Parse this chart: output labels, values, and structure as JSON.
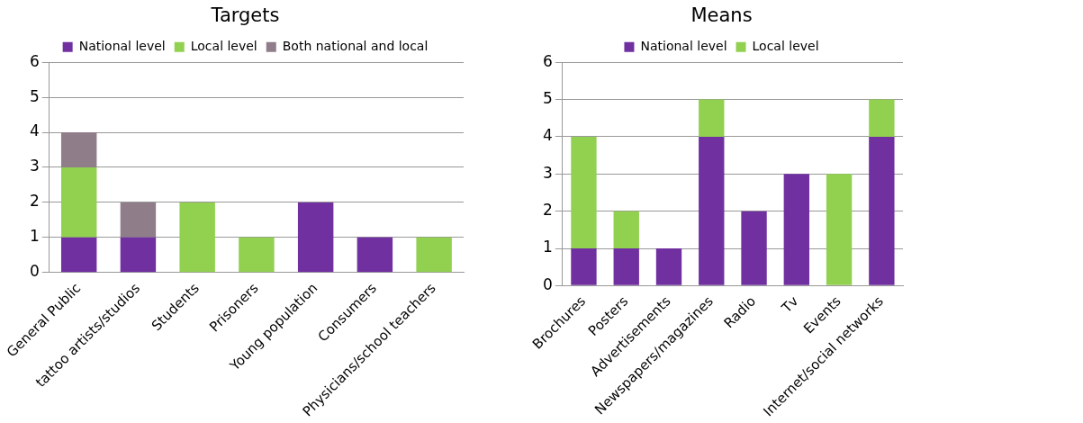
{
  "chart_data": [
    {
      "type": "bar",
      "title": "Targets",
      "stacked": true,
      "legend": "top",
      "grid": "y",
      "categories": [
        "General Public",
        "tattoo artists/studios",
        "Students",
        "Prisoners",
        "Young population",
        "Consumers",
        "Physicians/school teachers"
      ],
      "series": [
        {
          "name": "National level",
          "color": "#7030a0",
          "values": [
            1,
            1,
            0,
            0,
            2,
            1,
            0
          ]
        },
        {
          "name": "Local level",
          "color": "#92d050",
          "values": [
            2,
            0,
            2,
            1,
            0,
            0,
            1
          ]
        },
        {
          "name": "Both national and local",
          "color": "#8f7d8a",
          "values": [
            1,
            1,
            0,
            0,
            0,
            0,
            0
          ]
        }
      ],
      "ylim": [
        0,
        6
      ],
      "yticks": [
        0,
        1,
        2,
        3,
        4,
        5,
        6
      ]
    },
    {
      "type": "bar",
      "title": "Means",
      "stacked": true,
      "legend": "top",
      "grid": "y",
      "categories": [
        "Brochures",
        "Posters",
        "Advertisements",
        "Newspapers/magazines",
        "Radio",
        "Tv",
        "Events",
        "Internet/social networks"
      ],
      "series": [
        {
          "name": "National level",
          "color": "#7030a0",
          "values": [
            1,
            1,
            1,
            4,
            2,
            3,
            0,
            4
          ]
        },
        {
          "name": "Local level",
          "color": "#92d050",
          "values": [
            3,
            1,
            0,
            1,
            0,
            0,
            3,
            1
          ]
        }
      ],
      "ylim": [
        0,
        6
      ],
      "yticks": [
        0,
        1,
        2,
        3,
        4,
        5,
        6
      ]
    }
  ]
}
